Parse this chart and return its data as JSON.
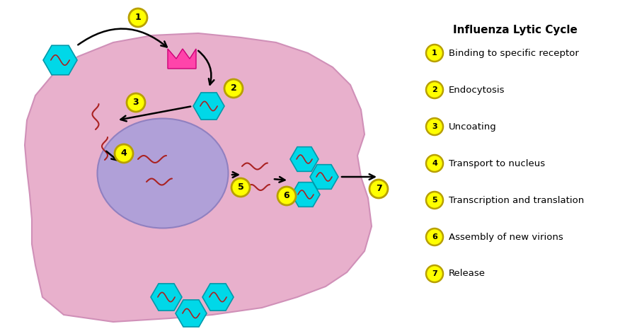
{
  "title": "Influenza Lytic Cycle",
  "legend_items": [
    {
      "num": "1",
      "text": "Binding to specific receptor"
    },
    {
      "num": "2",
      "text": "Endocytosis"
    },
    {
      "num": "3",
      "text": "Uncoating"
    },
    {
      "num": "4",
      "text": "Transport to nucleus"
    },
    {
      "num": "5",
      "text": "Transcription and translation"
    },
    {
      "num": "6",
      "text": "Assembly of new virions"
    },
    {
      "num": "7",
      "text": "Release"
    }
  ],
  "bg_color": "#ffffff",
  "cell_color": "#e8b0cc",
  "cell_edge_color": "#d090b8",
  "nucleus_color": "#b0a0d8",
  "nucleus_edge_color": "#9080c0",
  "virus_color": "#00d8e8",
  "virus_edge_color": "#0099aa",
  "rna_color": "#aa2222",
  "receptor_color": "#ff44aa",
  "receptor_edge_color": "#cc0077",
  "arrow_color": "#000000",
  "label_fill": "#ffff00",
  "label_edge": "#b8a000",
  "label_text": "#000000"
}
